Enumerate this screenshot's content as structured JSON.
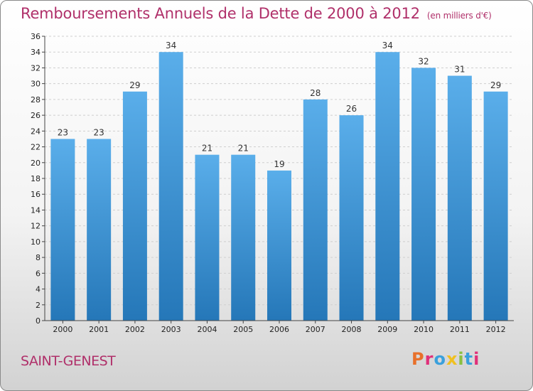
{
  "header": {
    "title": "Remboursements Annuels de la Dette de 2000 à 2012",
    "unit": "(en milliers d'€)"
  },
  "footer": {
    "commune": "SAINT-GENEST",
    "logo": "Proxiti"
  },
  "colors": {
    "title": "#b0306a",
    "bar_top": "#5aaeea",
    "bar_bottom": "#2577b8",
    "logo": [
      "#e8702a",
      "#e0307a",
      "#3aa0dc",
      "#f0c020",
      "#8ac040",
      "#3aa0dc",
      "#e0307a"
    ]
  },
  "chart_data": {
    "type": "bar",
    "title": "Remboursements Annuels de la Dette de 2000 à 2012",
    "unit": "(en milliers d'€)",
    "xlabel": "",
    "ylabel": "",
    "categories": [
      "2000",
      "2001",
      "2002",
      "2003",
      "2004",
      "2005",
      "2006",
      "2007",
      "2008",
      "2009",
      "2010",
      "2011",
      "2012"
    ],
    "values": [
      23,
      23,
      29,
      34,
      21,
      21,
      19,
      28,
      26,
      34,
      32,
      31,
      29
    ],
    "ylim": [
      0,
      36
    ],
    "yticks": [
      0,
      2,
      4,
      6,
      8,
      10,
      12,
      14,
      16,
      18,
      20,
      22,
      24,
      26,
      28,
      30,
      32,
      34,
      36
    ],
    "grid": true
  }
}
